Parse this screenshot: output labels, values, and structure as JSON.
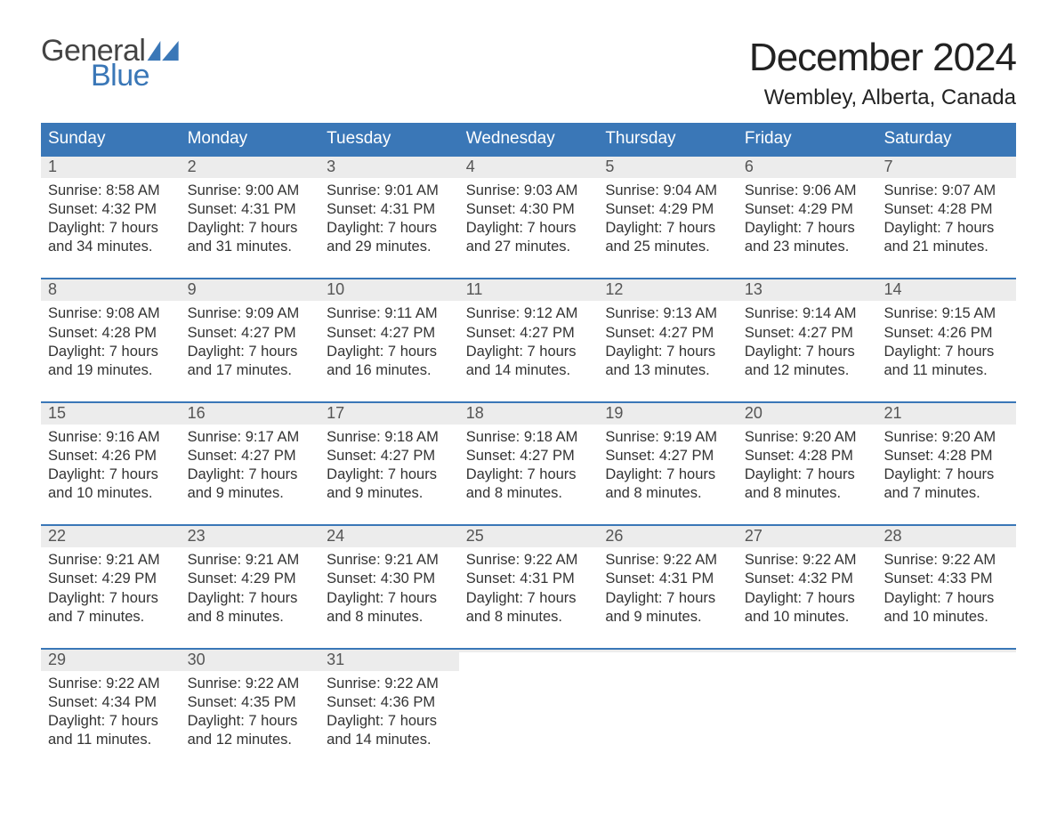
{
  "logo": {
    "word1": "General",
    "word2": "Blue"
  },
  "header": {
    "title": "December 2024",
    "location": "Wembley, Alberta, Canada"
  },
  "colors": {
    "brand_blue": "#3a77b7",
    "header_text": "#ffffff",
    "daynum_bg": "#ececec",
    "text": "#333333",
    "background": "#ffffff"
  },
  "typography": {
    "title_fontsize": 44,
    "subtitle_fontsize": 24,
    "dow_fontsize": 19,
    "daynum_fontsize": 18,
    "body_fontsize": 16.5,
    "font_family": "Arial"
  },
  "calendar": {
    "days_of_week": [
      "Sunday",
      "Monday",
      "Tuesday",
      "Wednesday",
      "Thursday",
      "Friday",
      "Saturday"
    ],
    "weeks": [
      [
        {
          "n": "1",
          "sunrise": "Sunrise: 8:58 AM",
          "sunset": "Sunset: 4:32 PM",
          "d1": "Daylight: 7 hours",
          "d2": "and 34 minutes."
        },
        {
          "n": "2",
          "sunrise": "Sunrise: 9:00 AM",
          "sunset": "Sunset: 4:31 PM",
          "d1": "Daylight: 7 hours",
          "d2": "and 31 minutes."
        },
        {
          "n": "3",
          "sunrise": "Sunrise: 9:01 AM",
          "sunset": "Sunset: 4:31 PM",
          "d1": "Daylight: 7 hours",
          "d2": "and 29 minutes."
        },
        {
          "n": "4",
          "sunrise": "Sunrise: 9:03 AM",
          "sunset": "Sunset: 4:30 PM",
          "d1": "Daylight: 7 hours",
          "d2": "and 27 minutes."
        },
        {
          "n": "5",
          "sunrise": "Sunrise: 9:04 AM",
          "sunset": "Sunset: 4:29 PM",
          "d1": "Daylight: 7 hours",
          "d2": "and 25 minutes."
        },
        {
          "n": "6",
          "sunrise": "Sunrise: 9:06 AM",
          "sunset": "Sunset: 4:29 PM",
          "d1": "Daylight: 7 hours",
          "d2": "and 23 minutes."
        },
        {
          "n": "7",
          "sunrise": "Sunrise: 9:07 AM",
          "sunset": "Sunset: 4:28 PM",
          "d1": "Daylight: 7 hours",
          "d2": "and 21 minutes."
        }
      ],
      [
        {
          "n": "8",
          "sunrise": "Sunrise: 9:08 AM",
          "sunset": "Sunset: 4:28 PM",
          "d1": "Daylight: 7 hours",
          "d2": "and 19 minutes."
        },
        {
          "n": "9",
          "sunrise": "Sunrise: 9:09 AM",
          "sunset": "Sunset: 4:27 PM",
          "d1": "Daylight: 7 hours",
          "d2": "and 17 minutes."
        },
        {
          "n": "10",
          "sunrise": "Sunrise: 9:11 AM",
          "sunset": "Sunset: 4:27 PM",
          "d1": "Daylight: 7 hours",
          "d2": "and 16 minutes."
        },
        {
          "n": "11",
          "sunrise": "Sunrise: 9:12 AM",
          "sunset": "Sunset: 4:27 PM",
          "d1": "Daylight: 7 hours",
          "d2": "and 14 minutes."
        },
        {
          "n": "12",
          "sunrise": "Sunrise: 9:13 AM",
          "sunset": "Sunset: 4:27 PM",
          "d1": "Daylight: 7 hours",
          "d2": "and 13 minutes."
        },
        {
          "n": "13",
          "sunrise": "Sunrise: 9:14 AM",
          "sunset": "Sunset: 4:27 PM",
          "d1": "Daylight: 7 hours",
          "d2": "and 12 minutes."
        },
        {
          "n": "14",
          "sunrise": "Sunrise: 9:15 AM",
          "sunset": "Sunset: 4:26 PM",
          "d1": "Daylight: 7 hours",
          "d2": "and 11 minutes."
        }
      ],
      [
        {
          "n": "15",
          "sunrise": "Sunrise: 9:16 AM",
          "sunset": "Sunset: 4:26 PM",
          "d1": "Daylight: 7 hours",
          "d2": "and 10 minutes."
        },
        {
          "n": "16",
          "sunrise": "Sunrise: 9:17 AM",
          "sunset": "Sunset: 4:27 PM",
          "d1": "Daylight: 7 hours",
          "d2": "and 9 minutes."
        },
        {
          "n": "17",
          "sunrise": "Sunrise: 9:18 AM",
          "sunset": "Sunset: 4:27 PM",
          "d1": "Daylight: 7 hours",
          "d2": "and 9 minutes."
        },
        {
          "n": "18",
          "sunrise": "Sunrise: 9:18 AM",
          "sunset": "Sunset: 4:27 PM",
          "d1": "Daylight: 7 hours",
          "d2": "and 8 minutes."
        },
        {
          "n": "19",
          "sunrise": "Sunrise: 9:19 AM",
          "sunset": "Sunset: 4:27 PM",
          "d1": "Daylight: 7 hours",
          "d2": "and 8 minutes."
        },
        {
          "n": "20",
          "sunrise": "Sunrise: 9:20 AM",
          "sunset": "Sunset: 4:28 PM",
          "d1": "Daylight: 7 hours",
          "d2": "and 8 minutes."
        },
        {
          "n": "21",
          "sunrise": "Sunrise: 9:20 AM",
          "sunset": "Sunset: 4:28 PM",
          "d1": "Daylight: 7 hours",
          "d2": "and 7 minutes."
        }
      ],
      [
        {
          "n": "22",
          "sunrise": "Sunrise: 9:21 AM",
          "sunset": "Sunset: 4:29 PM",
          "d1": "Daylight: 7 hours",
          "d2": "and 7 minutes."
        },
        {
          "n": "23",
          "sunrise": "Sunrise: 9:21 AM",
          "sunset": "Sunset: 4:29 PM",
          "d1": "Daylight: 7 hours",
          "d2": "and 8 minutes."
        },
        {
          "n": "24",
          "sunrise": "Sunrise: 9:21 AM",
          "sunset": "Sunset: 4:30 PM",
          "d1": "Daylight: 7 hours",
          "d2": "and 8 minutes."
        },
        {
          "n": "25",
          "sunrise": "Sunrise: 9:22 AM",
          "sunset": "Sunset: 4:31 PM",
          "d1": "Daylight: 7 hours",
          "d2": "and 8 minutes."
        },
        {
          "n": "26",
          "sunrise": "Sunrise: 9:22 AM",
          "sunset": "Sunset: 4:31 PM",
          "d1": "Daylight: 7 hours",
          "d2": "and 9 minutes."
        },
        {
          "n": "27",
          "sunrise": "Sunrise: 9:22 AM",
          "sunset": "Sunset: 4:32 PM",
          "d1": "Daylight: 7 hours",
          "d2": "and 10 minutes."
        },
        {
          "n": "28",
          "sunrise": "Sunrise: 9:22 AM",
          "sunset": "Sunset: 4:33 PM",
          "d1": "Daylight: 7 hours",
          "d2": "and 10 minutes."
        }
      ],
      [
        {
          "n": "29",
          "sunrise": "Sunrise: 9:22 AM",
          "sunset": "Sunset: 4:34 PM",
          "d1": "Daylight: 7 hours",
          "d2": "and 11 minutes."
        },
        {
          "n": "30",
          "sunrise": "Sunrise: 9:22 AM",
          "sunset": "Sunset: 4:35 PM",
          "d1": "Daylight: 7 hours",
          "d2": "and 12 minutes."
        },
        {
          "n": "31",
          "sunrise": "Sunrise: 9:22 AM",
          "sunset": "Sunset: 4:36 PM",
          "d1": "Daylight: 7 hours",
          "d2": "and 14 minutes."
        },
        {
          "empty": true
        },
        {
          "empty": true
        },
        {
          "empty": true
        },
        {
          "empty": true
        }
      ]
    ]
  }
}
